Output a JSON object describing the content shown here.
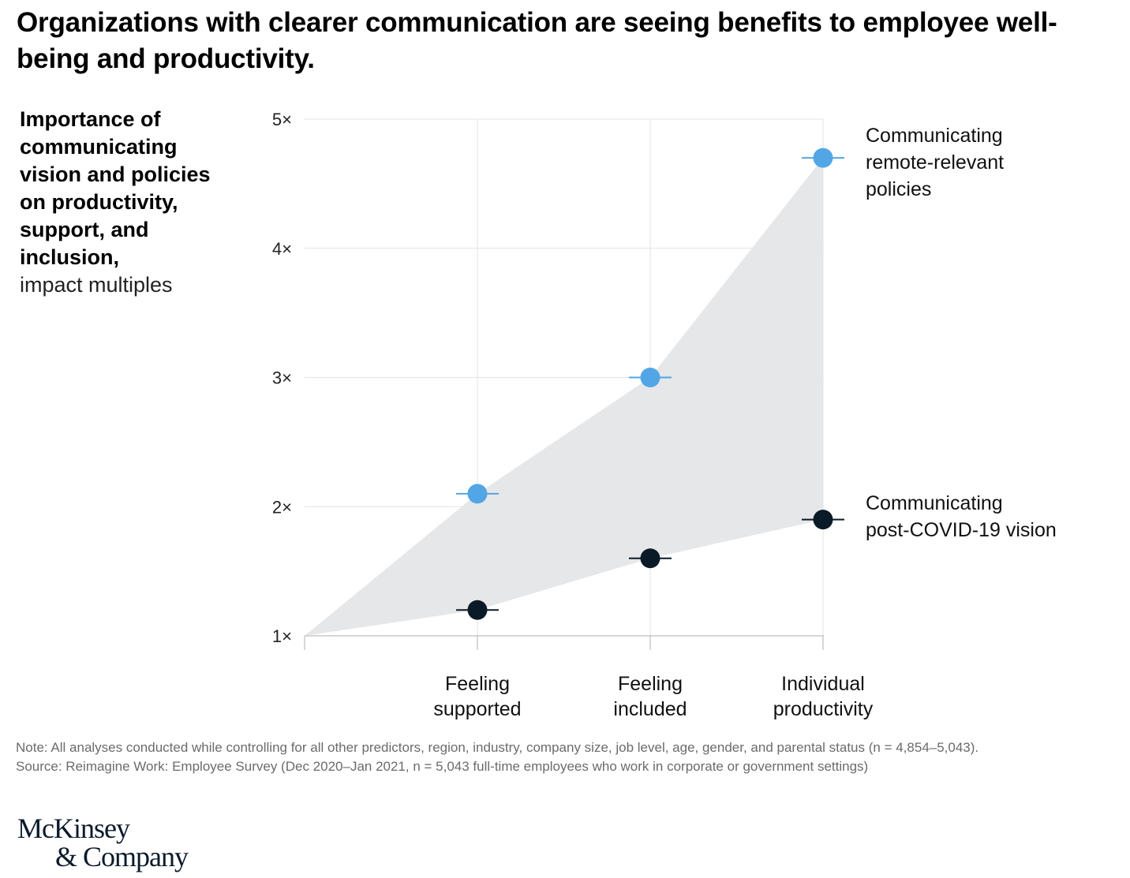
{
  "title": "Organizations with clearer communication are seeing benefits to employee well-being and productivity.",
  "ylabel": {
    "bold": "Importance of communicating vision and policies on productivity, support, and inclusion,",
    "light": "impact multiples"
  },
  "chart_data": {
    "type": "scatter",
    "categories": [
      "Feeling supported",
      "Feeling included",
      "Individual productivity"
    ],
    "category_lines": [
      [
        "Feeling",
        "supported"
      ],
      [
        "Feeling",
        "included"
      ],
      [
        "Individual",
        "productivity"
      ]
    ],
    "y_ticks": [
      "1×",
      "2×",
      "3×",
      "4×",
      "5×"
    ],
    "ylim": [
      1,
      5
    ],
    "grid": true,
    "shaded_band_origin": 1,
    "series": [
      {
        "name": "Communicating remote-relevant policies",
        "label_lines": [
          "Communicating",
          "remote-relevant",
          "policies"
        ],
        "color": "#52a6e6",
        "values": [
          2.1,
          3.0,
          4.7
        ]
      },
      {
        "name": "Communicating post-COVID-19 vision",
        "label_lines": [
          "Communicating",
          "post-COVID-19 vision"
        ],
        "color": "#0a1a26",
        "values": [
          1.2,
          1.6,
          1.9
        ]
      }
    ],
    "band_color": "#e6e7e9"
  },
  "notes": {
    "note": "Note: All analyses conducted while controlling for all other predictors, region, industry, company size, job level, age, gender, and parental status (n = 4,854–5,043).",
    "source": "Source: Reimagine Work: Employee Survey (Dec 2020–Jan 2021, n = 5,043 full-time employees who work in corporate or government settings)"
  },
  "logo": {
    "line1": "McKinsey",
    "line2": "& Company"
  }
}
